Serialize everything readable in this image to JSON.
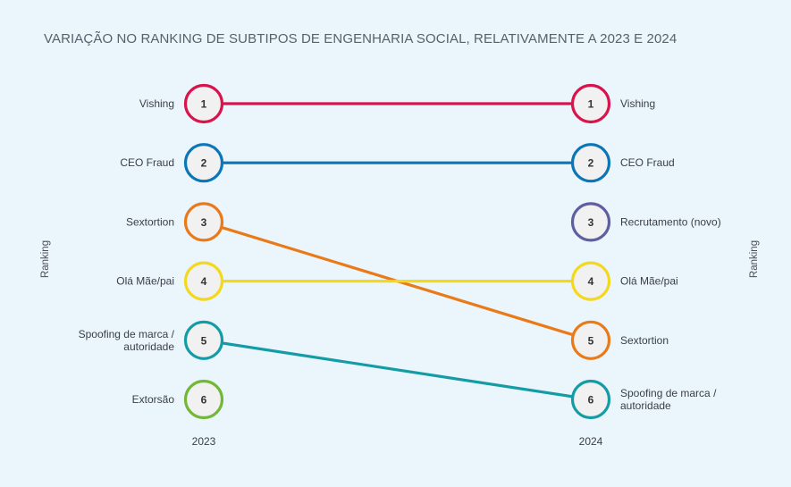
{
  "chart_data": {
    "type": "slope",
    "title": "VARIAÇÃO NO RANKING DE SUBTIPOS DE ENGENHARIA SOCIAL, RELATIVAMENTE A 2023 E 2024",
    "axis_label_left": "Ranking",
    "axis_label_right": "Ranking",
    "years": [
      "2023",
      "2024"
    ],
    "left": [
      {
        "rank": "1",
        "label": [
          "Vishing"
        ],
        "color": "#d9134c"
      },
      {
        "rank": "2",
        "label": [
          "CEO Fraud"
        ],
        "color": "#0b76b7"
      },
      {
        "rank": "3",
        "label": [
          "Sextortion"
        ],
        "color": "#ea7a17"
      },
      {
        "rank": "4",
        "label": [
          "Olá Mãe/pai"
        ],
        "color": "#f4d81c"
      },
      {
        "rank": "5",
        "label": [
          "Spoofing de marca /",
          "autoridade"
        ],
        "color": "#149ca6"
      },
      {
        "rank": "6",
        "label": [
          "Extorsão"
        ],
        "color": "#72b837"
      }
    ],
    "right": [
      {
        "rank": "1",
        "label": [
          "Vishing"
        ],
        "color": "#d9134c"
      },
      {
        "rank": "2",
        "label": [
          "CEO Fraud"
        ],
        "color": "#0b76b7"
      },
      {
        "rank": "3",
        "label": [
          "Recrutamento (novo)"
        ],
        "color": "#5e5fa0"
      },
      {
        "rank": "4",
        "label": [
          "Olá Mãe/pai"
        ],
        "color": "#f4d81c"
      },
      {
        "rank": "5",
        "label": [
          "Sextortion"
        ],
        "color": "#ea7a17"
      },
      {
        "rank": "6",
        "label": [
          "Spoofing de marca /",
          "autoridade"
        ],
        "color": "#149ca6"
      }
    ],
    "connections": [
      {
        "name": "Vishing",
        "from": 1,
        "to": 1,
        "color": "#d9134c"
      },
      {
        "name": "CEO Fraud",
        "from": 2,
        "to": 2,
        "color": "#0b76b7"
      },
      {
        "name": "Sextortion",
        "from": 3,
        "to": 5,
        "color": "#ea7a17"
      },
      {
        "name": "Olá Mãe/pai",
        "from": 4,
        "to": 4,
        "color": "#f4d81c"
      },
      {
        "name": "Spoofing de marca / autoridade",
        "from": 5,
        "to": 6,
        "color": "#149ca6"
      }
    ],
    "colors": {
      "background": "#eaf5fc",
      "circle_fill": "#f1f1f1"
    }
  }
}
